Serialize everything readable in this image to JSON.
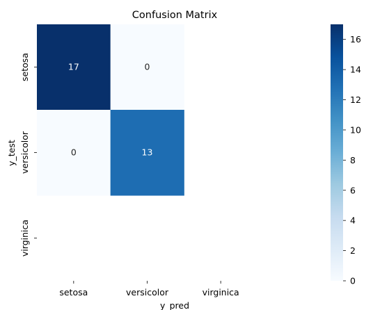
{
  "chart_data": {
    "type": "heatmap",
    "title": "Confusion Matrix",
    "xlabel": "y_pred",
    "ylabel": "y_test",
    "x_categories": [
      "setosa",
      "versicolor",
      "virginica"
    ],
    "y_categories": [
      "setosa",
      "versicolor",
      "virginica"
    ],
    "cells": [
      {
        "row": "setosa",
        "col": "setosa",
        "value": 17
      },
      {
        "row": "setosa",
        "col": "versicolor",
        "value": 0
      },
      {
        "row": "versicolor",
        "col": "setosa",
        "value": 0
      },
      {
        "row": "versicolor",
        "col": "versicolor",
        "value": 13
      }
    ],
    "colormap": "Blues",
    "color_range": [
      0,
      17
    ],
    "colorbar_ticks": [
      0,
      2,
      4,
      6,
      8,
      10,
      12,
      14,
      16
    ],
    "annotation_colors": {
      "light": "#ffffff",
      "dark": "#262626"
    }
  }
}
